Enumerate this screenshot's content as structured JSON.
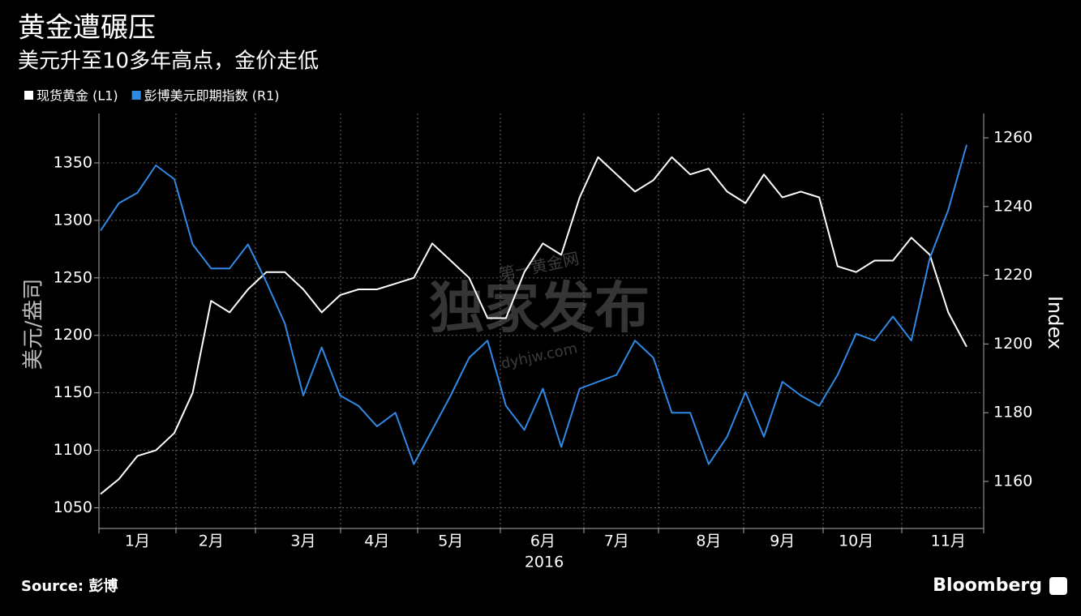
{
  "chart_data": {
    "type": "line",
    "title": "黄金遭碾压",
    "subtitle": "美元升至10多年高点，金价走低",
    "categories": [
      null,
      null,
      "1月",
      null,
      null,
      null,
      "2月",
      null,
      null,
      null,
      null,
      "3月",
      null,
      null,
      null,
      "4月",
      null,
      null,
      null,
      "5月",
      null,
      null,
      null,
      null,
      "6月",
      null,
      null,
      null,
      "7月",
      null,
      null,
      null,
      null,
      "8月",
      null,
      null,
      null,
      "9月",
      null,
      null,
      null,
      "10月",
      null,
      null,
      null,
      null,
      "11月",
      null
    ],
    "x_label": "2016",
    "y_label": "美元/盎司",
    "y2_label": "Index",
    "series": [
      {
        "name": "现货黄金 (L1)",
        "color": "#ffffff",
        "axis": "y",
        "values": [
          1062,
          1075,
          1095,
          1100,
          1115,
          1150,
          1230,
          1220,
          1240,
          1255,
          1255,
          1240,
          1220,
          1235,
          1240,
          1240,
          1245,
          1250,
          1280,
          1265,
          1250,
          1215,
          1215,
          1255,
          1280,
          1270,
          1320,
          1355,
          1340,
          1325,
          1335,
          1355,
          1340,
          1345,
          1325,
          1315,
          1340,
          1320,
          1325,
          1320,
          1260,
          1255,
          1265,
          1265,
          1285,
          1270,
          1220,
          1190
        ]
      },
      {
        "name": "彭博美元即期指数 (R1)",
        "color": "#2f8ae6",
        "axis": "y2",
        "values": [
          1233,
          1241,
          1244,
          1252,
          1248,
          1229,
          1222,
          1222,
          1229,
          1218,
          1206,
          1185,
          1199,
          1185,
          1182,
          1176,
          1180,
          1165,
          1175,
          1185,
          1196,
          1201,
          1182,
          1175,
          1187,
          1170,
          1187,
          1189,
          1191,
          1201,
          1196,
          1180,
          1180,
          1165,
          1173,
          1186,
          1173,
          1189,
          1185,
          1182,
          1191,
          1203,
          1201,
          1208,
          1201,
          1225,
          1239,
          1258
        ]
      }
    ],
    "ylim": [
      1032,
      1393
    ],
    "yticks": [
      1050,
      1100,
      1150,
      1200,
      1250,
      1300,
      1350
    ],
    "y2lim": [
      1146.3,
      1267.1
    ],
    "y2ticks": [
      1160,
      1180,
      1200,
      1220,
      1240,
      1260
    ],
    "grid": true,
    "source": "Source: 彭博",
    "brand": "Bloomberg",
    "watermark": [
      "第一黄金网",
      "独家发布",
      "dyhjw.com"
    ]
  }
}
